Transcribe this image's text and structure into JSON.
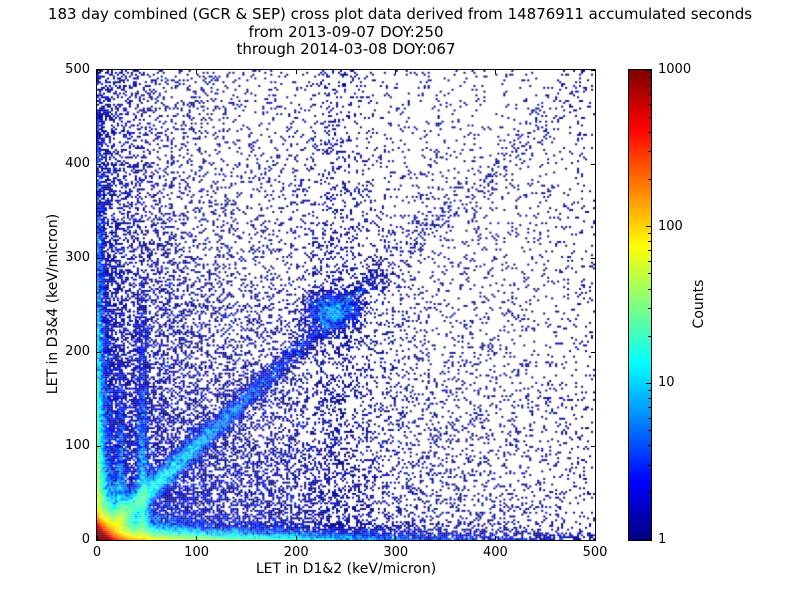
{
  "chart_data": {
    "type": "heatmap",
    "title": "183 day combined (GCR & SEP) cross plot data derived from 14876911 accumulated seconds",
    "subtitle1": "from 2013-09-07 DOY:250",
    "subtitle2": "through 2014-03-08 DOY:067",
    "xlabel": "LET in D1&2 (keV/micron)",
    "ylabel": "LET in D3&4 (keV/micron)",
    "xlim": [
      0,
      500
    ],
    "ylim": [
      0,
      500
    ],
    "x_ticks": [
      0,
      100,
      200,
      300,
      400,
      500
    ],
    "y_ticks": [
      0,
      100,
      200,
      300,
      400,
      500
    ],
    "grid": "off",
    "background": "#ffffff",
    "colorbar": {
      "label": "Counts",
      "scale": "log",
      "min": 1,
      "max": 1000,
      "ticks": [
        1,
        10,
        100,
        1000
      ],
      "colormap": "jet"
    },
    "features": [
      {
        "name": "origin-core",
        "kind": "exp2d",
        "n": 60000,
        "sx": 4,
        "sy": 4
      },
      {
        "name": "origin-halo",
        "kind": "exp2d",
        "n": 22000,
        "sx": 16,
        "sy": 14
      },
      {
        "name": "x-axis-band",
        "kind": "exp2d",
        "n": 16000,
        "sx": 95,
        "sy": 5
      },
      {
        "name": "y-axis-band",
        "kind": "exp2d",
        "n": 9000,
        "sx": 4,
        "sy": 120
      },
      {
        "name": "lower-left-background",
        "kind": "exp2d",
        "n": 14000,
        "sx": 170,
        "sy": 170
      },
      {
        "name": "uniform-sparse",
        "kind": "uniform",
        "n": 3500
      },
      {
        "name": "left-scatter",
        "kind": "lscatter",
        "n": 2200,
        "sx": 45
      },
      {
        "name": "main-diagonal",
        "kind": "diag",
        "n": 11000,
        "scale": 75,
        "sigma": 5,
        "tmax": 285
      },
      {
        "name": "diagonal-extension",
        "kind": "diag",
        "n": 900,
        "scale": 400,
        "sigma": 9,
        "tmin": 250,
        "tmax": 500
      },
      {
        "name": "diagonal-cluster",
        "kind": "gauss",
        "n": 1500,
        "cx": 236,
        "cy": 243,
        "sx": 14,
        "sy": 11
      },
      {
        "name": "vertical-stripe-45",
        "kind": "vstripe",
        "n": 2600,
        "x0": 46,
        "sx": 3,
        "yscale": 85,
        "ymax": 280
      },
      {
        "name": "vertical-stripe-24",
        "kind": "vstripe",
        "n": 1300,
        "x0": 24,
        "sx": 2.5,
        "yscale": 60,
        "ymax": 210
      },
      {
        "name": "mid-vertical-scatter",
        "kind": "vscatter",
        "n": 600,
        "x0": 240,
        "sx": 16
      }
    ]
  }
}
